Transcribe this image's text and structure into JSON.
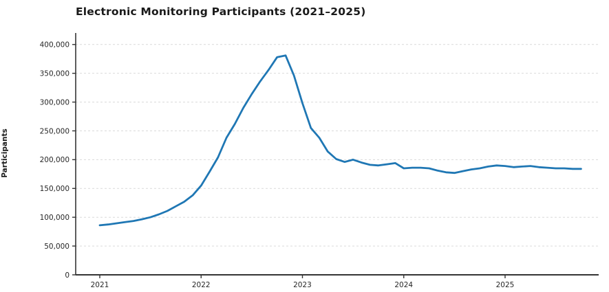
{
  "title": "Electronic Monitoring Participants (2021–2025)",
  "colors": {
    "line": "#1f77b4",
    "spine": "#333333",
    "grid": "#d9d9d9",
    "tick_label": "#262626",
    "title_text": "#1a1a1a",
    "background": "#ffffff"
  },
  "chart_data": {
    "type": "line",
    "title": "Electronic Monitoring Participants (2021–2025)",
    "xlabel": "",
    "ylabel": "Participants",
    "legend": "none",
    "grid": "horizontal-dashed",
    "ylim": [
      0,
      420000
    ],
    "y_ticks": [
      0,
      50000,
      100000,
      150000,
      200000,
      250000,
      300000,
      350000,
      400000
    ],
    "y_tick_labels": [
      "0",
      "50,000",
      "100,000",
      "150,000",
      "200,000",
      "250,000",
      "300,000",
      "350,000",
      "400,000"
    ],
    "x_tick_labels": [
      "2021",
      "2022",
      "2023",
      "2024",
      "2025"
    ],
    "x_unit": "month",
    "series": [
      {
        "name": "Participants",
        "x": [
          "2021-01",
          "2021-02",
          "2021-03",
          "2021-04",
          "2021-05",
          "2021-06",
          "2021-07",
          "2021-08",
          "2021-09",
          "2021-10",
          "2021-11",
          "2021-12",
          "2022-01",
          "2022-02",
          "2022-03",
          "2022-04",
          "2022-05",
          "2022-06",
          "2022-07",
          "2022-08",
          "2022-09",
          "2022-10",
          "2022-11",
          "2022-12",
          "2023-01",
          "2023-02",
          "2023-03",
          "2023-04",
          "2023-05",
          "2023-06",
          "2023-07",
          "2023-08",
          "2023-09",
          "2023-10",
          "2023-11",
          "2023-12",
          "2024-01",
          "2024-02",
          "2024-03",
          "2024-04",
          "2024-05",
          "2024-06",
          "2024-07",
          "2024-08",
          "2024-09",
          "2024-10",
          "2024-11",
          "2024-12",
          "2025-01",
          "2025-02",
          "2025-03",
          "2025-04",
          "2025-05",
          "2025-06",
          "2025-07",
          "2025-08",
          "2025-09",
          "2025-10"
        ],
        "values": [
          86000,
          87500,
          89500,
          91500,
          93500,
          96500,
          100000,
          105000,
          111000,
          119000,
          127000,
          138000,
          155000,
          179000,
          204000,
          238000,
          262000,
          290000,
          314000,
          336000,
          356000,
          378000,
          381000,
          346000,
          298000,
          255000,
          238000,
          214000,
          201000,
          196000,
          200000,
          195000,
          191000,
          190000,
          192000,
          194000,
          185000,
          186000,
          186000,
          185000,
          181000,
          178000,
          177000,
          180000,
          183000,
          185000,
          188000,
          190000,
          189000,
          187000,
          188000,
          189000,
          187000,
          186000,
          185000,
          185000,
          184000,
          184000
        ]
      }
    ]
  }
}
